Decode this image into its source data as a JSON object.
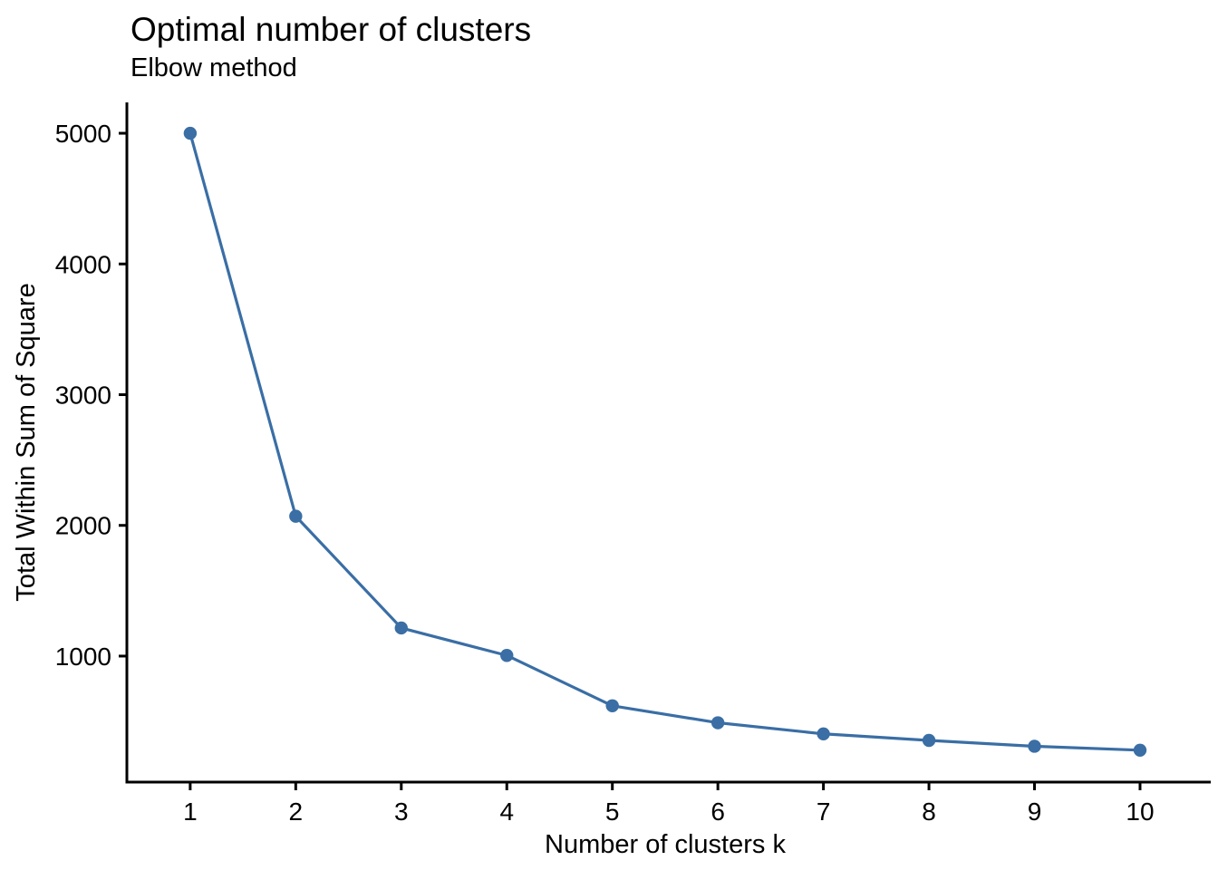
{
  "header": {
    "title": "Optimal number of clusters",
    "subtitle": "Elbow method"
  },
  "chart_data": {
    "type": "line",
    "title": "Optimal number of clusters",
    "subtitle": "Elbow method",
    "xlabel": "Number of clusters k",
    "ylabel": "Total Within Sum of Square",
    "x": [
      1,
      2,
      3,
      4,
      5,
      6,
      7,
      8,
      9,
      10
    ],
    "y": [
      5000,
      2070,
      1215,
      1005,
      620,
      490,
      405,
      355,
      310,
      280
    ],
    "series_name": "Total within sum of square",
    "x_ticks": [
      {
        "label": "1",
        "value": 1
      },
      {
        "label": "2",
        "value": 2
      },
      {
        "label": "3",
        "value": 3
      },
      {
        "label": "4",
        "value": 4
      },
      {
        "label": "5",
        "value": 5
      },
      {
        "label": "6",
        "value": 6
      },
      {
        "label": "7",
        "value": 7
      },
      {
        "label": "8",
        "value": 8
      },
      {
        "label": "9",
        "value": 9
      },
      {
        "label": "10",
        "value": 10
      }
    ],
    "y_ticks": [
      {
        "label": "1000",
        "value": 1000
      },
      {
        "label": "2000",
        "value": 2000
      },
      {
        "label": "3000",
        "value": 3000
      },
      {
        "label": "4000",
        "value": 4000
      },
      {
        "label": "5000",
        "value": 5000
      }
    ],
    "xlim": [
      0.4,
      10.67
    ],
    "ylim": [
      36,
      5236
    ],
    "grid": false,
    "legend": "none",
    "marker": "circle",
    "line_color": "#3A6EA5",
    "point_color": "#3A6EA5",
    "axis_color": "#000000",
    "text_color": "#000000"
  }
}
